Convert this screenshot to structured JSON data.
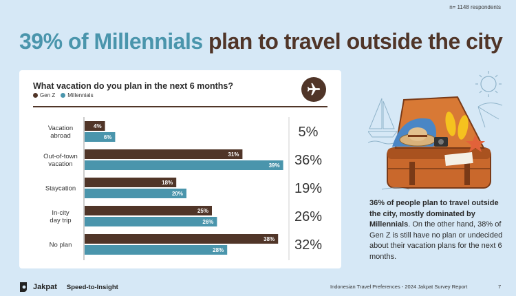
{
  "respondents": "n= 1148 respondents",
  "headline": {
    "accent": "39% of Millennials",
    "rest": "plan to travel outside the city"
  },
  "card": {
    "title": "What vacation do you plan in the next 6 months?"
  },
  "chart_data": {
    "type": "bar",
    "orientation": "horizontal",
    "title": "What vacation do you plan in the next 6 months?",
    "categories": [
      [
        "Vacation",
        "abroad"
      ],
      [
        "Out-of-town",
        "vacation"
      ],
      [
        "Staycation"
      ],
      [
        "In-city",
        "day trip"
      ],
      [
        "No plan"
      ]
    ],
    "series": [
      {
        "name": "Gen Z",
        "color": "#503528",
        "values": [
          4,
          31,
          18,
          25,
          38
        ],
        "labels": [
          "4%",
          "31%",
          "18%",
          "25%",
          "38%"
        ]
      },
      {
        "name": "Millennials",
        "color": "#4a95ac",
        "values": [
          6,
          39,
          20,
          26,
          28
        ],
        "labels": [
          "6%",
          "39%",
          "20%",
          "26%",
          "28%"
        ]
      }
    ],
    "totals": [
      "5%",
      "36%",
      "19%",
      "26%",
      "32%"
    ],
    "xlim": [
      0,
      40
    ],
    "legend": "top-left",
    "grid": false
  },
  "right_text": {
    "bold": "36% of people plan to travel outside the city, mostly dominated by Millennials",
    "rest": ". On the other hand, 38% of Gen Z is still have no plan or undecided about their vacation plans for the next 6 months."
  },
  "footer": {
    "brand": "Jakpat",
    "tagline": "Speed-to-Insight",
    "report": "Indonesian Travel Preferences - 2024 Jakpat Survey Report",
    "page": "7"
  },
  "icons": {
    "badge": "airplane-icon",
    "logo": "jakpat-logo-icon",
    "illustration": "suitcase-illustration"
  }
}
